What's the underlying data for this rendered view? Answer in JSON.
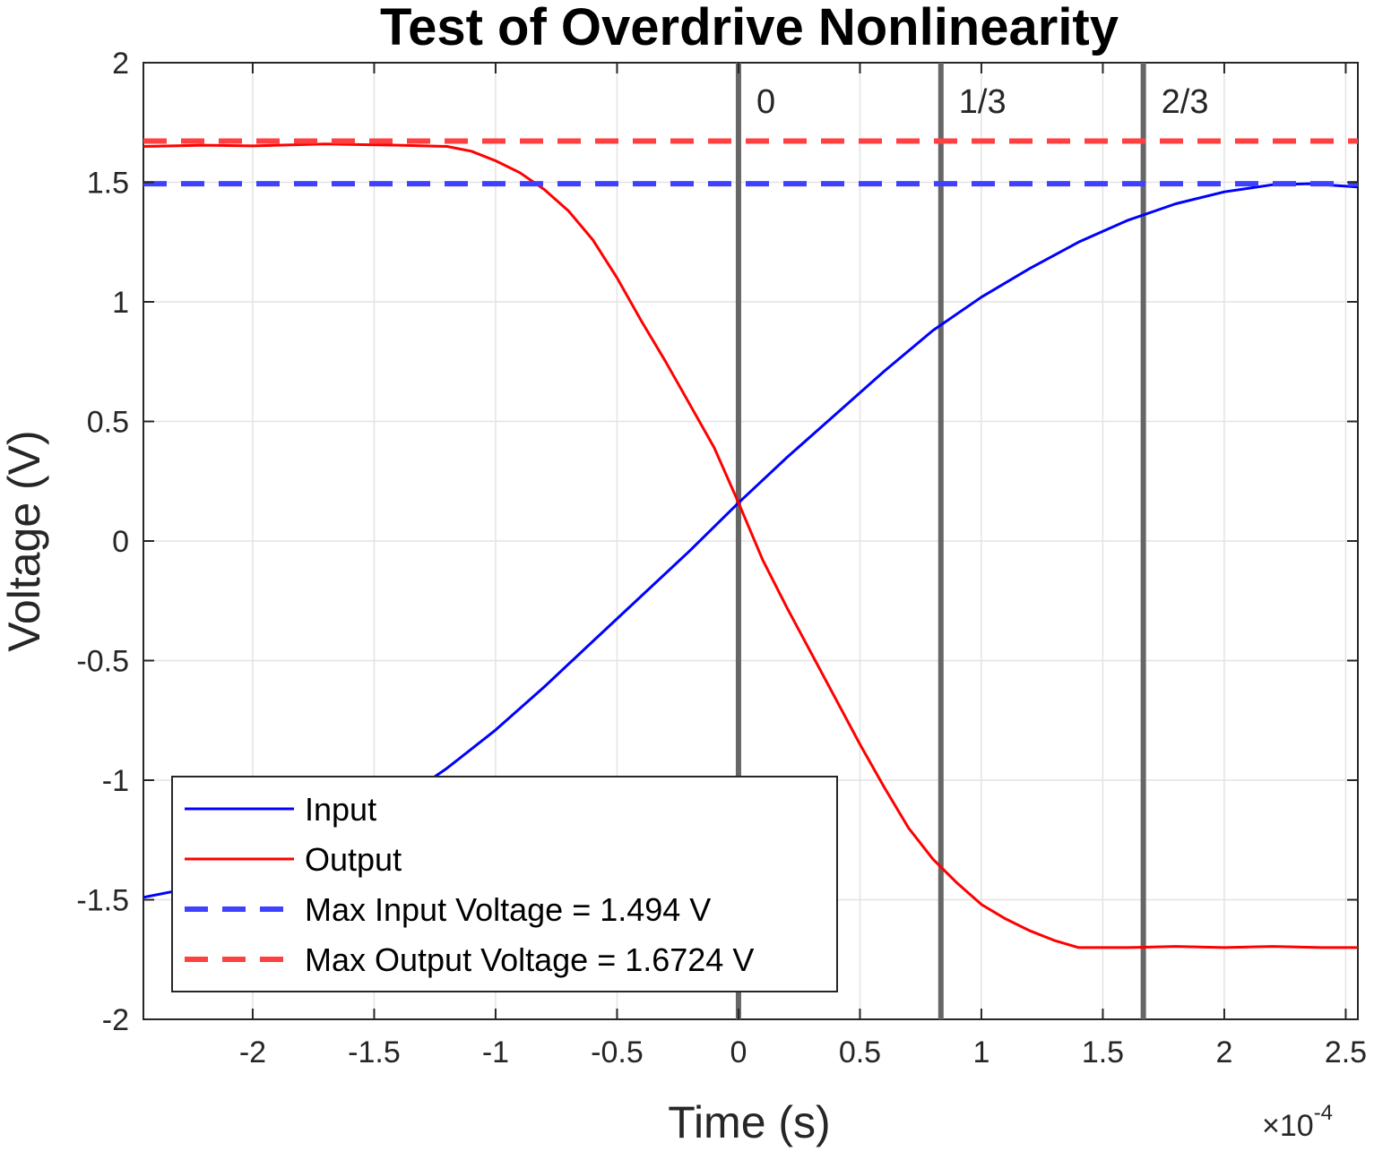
{
  "chart_data": {
    "type": "line",
    "title": "Test of Overdrive Nonlinearity",
    "xlabel": "Time (s)",
    "ylabel": "Voltage (V)",
    "x_exponent_label": "×10",
    "x_exponent_power": "-4",
    "xlim": [
      -2.45,
      2.55
    ],
    "ylim": [
      -2,
      2
    ],
    "grid": true,
    "x_ticks": [
      -2,
      -1.5,
      -1,
      -0.5,
      0,
      0.5,
      1,
      1.5,
      2,
      2.5
    ],
    "x_tick_labels": [
      "-2",
      "-1.5",
      "-1",
      "-0.5",
      "0",
      "0.5",
      "1",
      "1.5",
      "2",
      "2.5"
    ],
    "y_ticks": [
      -2,
      -1.5,
      -1,
      -0.5,
      0,
      0.5,
      1,
      1.5,
      2
    ],
    "y_tick_labels": [
      "-2",
      "-1.5",
      "-1",
      "-0.5",
      "0",
      "0.5",
      "1",
      "1.5",
      "2"
    ],
    "legend_position": "bottom-left",
    "series": [
      {
        "name": "Input",
        "style": "solid",
        "color": "#0000ff",
        "x": [
          -2.45,
          -2.2,
          -2.0,
          -1.8,
          -1.6,
          -1.4,
          -1.2,
          -1.0,
          -0.8,
          -0.6,
          -0.4,
          -0.2,
          0.0,
          0.2,
          0.4,
          0.6,
          0.8,
          1.0,
          1.2,
          1.4,
          1.6,
          1.8,
          2.0,
          2.2,
          2.35,
          2.55
        ],
        "y": [
          -1.49,
          -1.44,
          -1.39,
          -1.31,
          -1.21,
          -1.09,
          -0.95,
          -0.79,
          -0.61,
          -0.42,
          -0.23,
          -0.04,
          0.16,
          0.35,
          0.53,
          0.71,
          0.88,
          1.02,
          1.14,
          1.25,
          1.34,
          1.41,
          1.46,
          1.49,
          1.494,
          1.48
        ]
      },
      {
        "name": "Output",
        "style": "solid",
        "color": "#ff0000",
        "x": [
          -2.45,
          -2.2,
          -2.0,
          -1.7,
          -1.4,
          -1.2,
          -1.1,
          -1.0,
          -0.9,
          -0.8,
          -0.7,
          -0.6,
          -0.5,
          -0.4,
          -0.3,
          -0.2,
          -0.1,
          0.0,
          0.1,
          0.2,
          0.3,
          0.4,
          0.5,
          0.6,
          0.7,
          0.8,
          0.9,
          1.0,
          1.1,
          1.2,
          1.3,
          1.4,
          1.6,
          1.8,
          2.0,
          2.2,
          2.4,
          2.55
        ],
        "y": [
          1.65,
          1.655,
          1.652,
          1.66,
          1.655,
          1.65,
          1.63,
          1.59,
          1.54,
          1.47,
          1.38,
          1.26,
          1.1,
          0.92,
          0.75,
          0.57,
          0.39,
          0.16,
          -0.08,
          -0.28,
          -0.47,
          -0.66,
          -0.85,
          -1.03,
          -1.2,
          -1.33,
          -1.43,
          -1.52,
          -1.58,
          -1.63,
          -1.67,
          -1.7,
          -1.7,
          -1.695,
          -1.7,
          -1.695,
          -1.7,
          -1.7
        ]
      },
      {
        "name": "Max Input Voltage = 1.494 V",
        "style": "dashed",
        "color": "#4040ff",
        "x": [
          -2.45,
          2.55
        ],
        "y": [
          1.494,
          1.494
        ]
      },
      {
        "name": "Max Output Voltage = 1.6724 V",
        "style": "dashed",
        "color": "#ff4040",
        "x": [
          -2.45,
          2.55
        ],
        "y": [
          1.6724,
          1.6724
        ]
      }
    ],
    "vertical_lines": [
      {
        "x": 0.0,
        "label": "0"
      },
      {
        "x": 0.8333,
        "label": "1/3"
      },
      {
        "x": 1.6667,
        "label": "2/3"
      }
    ],
    "vertical_line_color": "#666666"
  }
}
